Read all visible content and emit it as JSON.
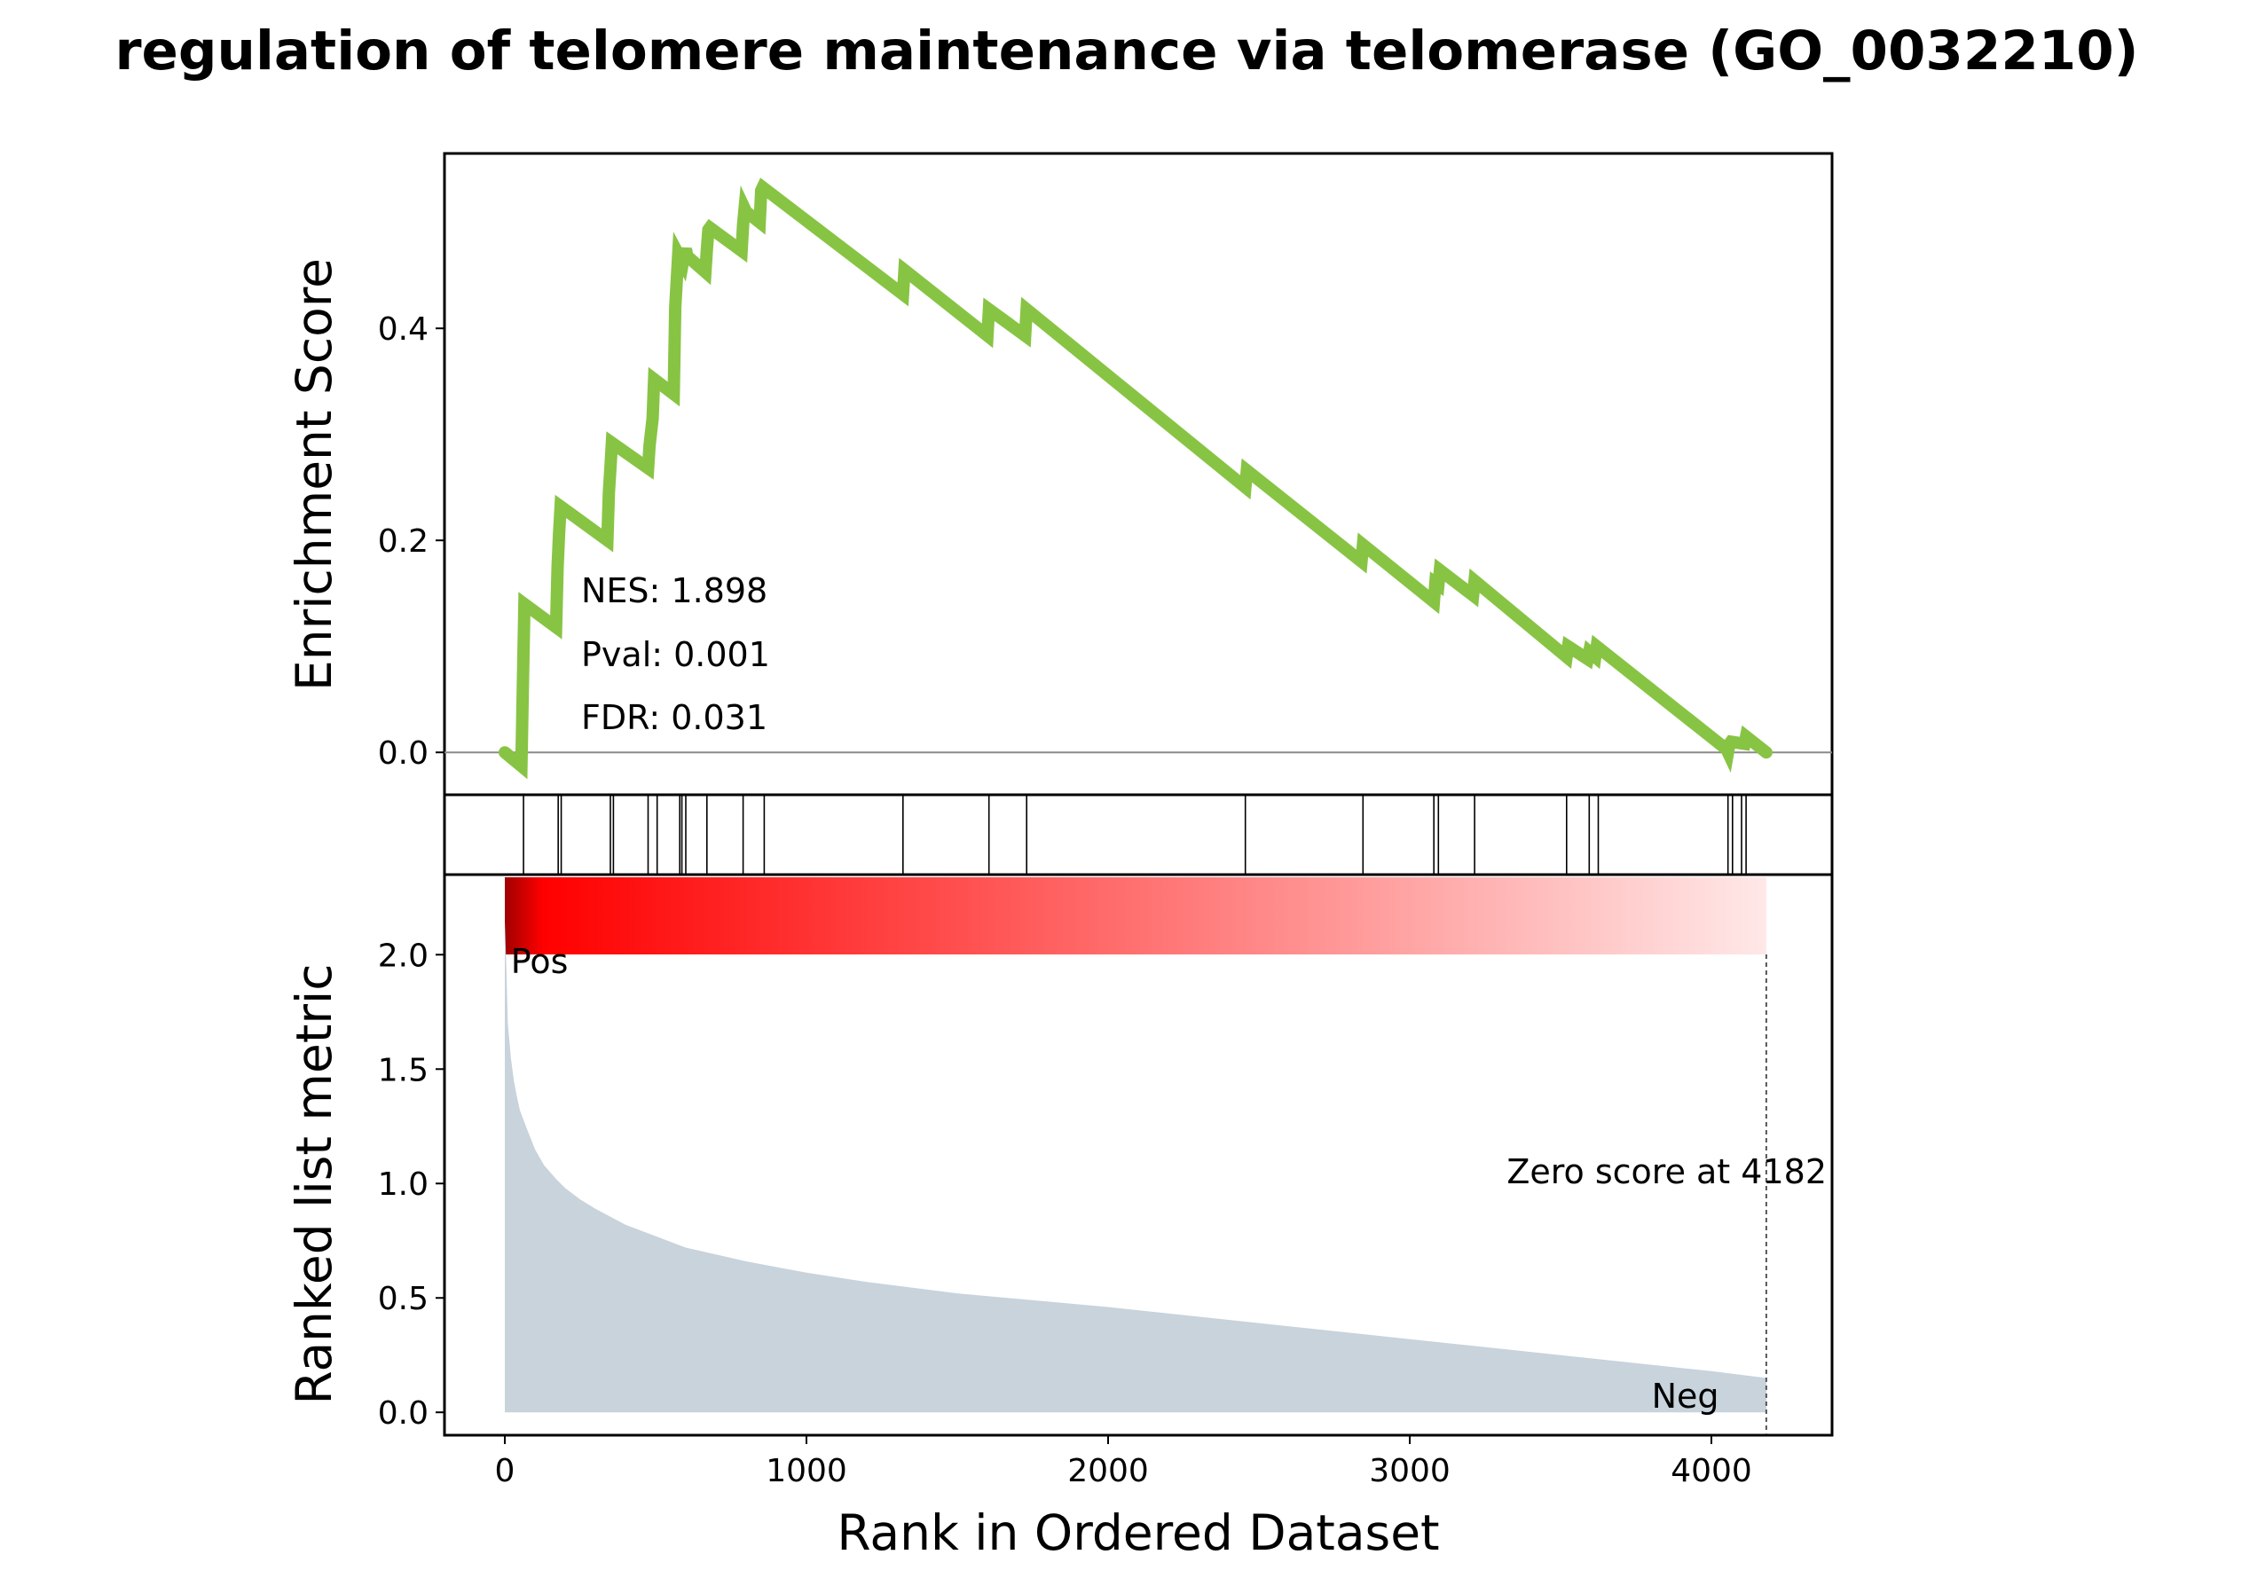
{
  "chart_data": {
    "type": "line",
    "title": "regulation of telomere maintenance via telomerase (GO_0032210)",
    "xlabel": "Rank in Ordered Dataset",
    "xlim": [
      -200,
      4400
    ],
    "xticks": [
      "0",
      "1000",
      "2000",
      "3000",
      "4000"
    ],
    "top_panel": {
      "ylabel": "Enrichment Score",
      "ylim": [
        -0.04,
        0.565
      ],
      "yticks": [
        "0.0",
        "0.2",
        "0.4"
      ],
      "line_color": "#88c444",
      "zero_line": true,
      "running_es": {
        "x": [
          0,
          55,
          60,
          65,
          170,
          175,
          180,
          185,
          340,
          345,
          350,
          355,
          475,
          480,
          490,
          495,
          560,
          565,
          570,
          575,
          590,
          595,
          600,
          605,
          665,
          670,
          675,
          680,
          785,
          790,
          795,
          800,
          845,
          850,
          855,
          1320,
          1325,
          1600,
          1605,
          1725,
          1730,
          2455,
          2460,
          2840,
          2845,
          3080,
          3085,
          3095,
          3100,
          3210,
          3215,
          3520,
          3525,
          3590,
          3595,
          3615,
          3620,
          4050,
          4055,
          4060,
          4065,
          4110,
          4115,
          4182
        ],
        "y": [
          0.0,
          -0.013,
          0.065,
          0.14,
          0.118,
          0.175,
          0.207,
          0.232,
          0.2,
          0.245,
          0.268,
          0.292,
          0.268,
          0.29,
          0.315,
          0.352,
          0.338,
          0.42,
          0.445,
          0.47,
          0.462,
          0.47,
          0.475,
          0.468,
          0.453,
          0.475,
          0.493,
          0.495,
          0.473,
          0.498,
          0.513,
          0.51,
          0.5,
          0.53,
          0.533,
          0.432,
          0.455,
          0.393,
          0.418,
          0.393,
          0.418,
          0.25,
          0.266,
          0.18,
          0.196,
          0.142,
          0.16,
          0.158,
          0.172,
          0.148,
          0.162,
          0.09,
          0.1,
          0.088,
          0.095,
          0.09,
          0.1,
          0.003,
          0.0,
          0.008,
          0.01,
          0.008,
          0.015,
          0.0
        ]
      },
      "annotations": {
        "nes": "NES: 1.898",
        "pval": "Pval: 0.001",
        "fdr": "FDR: 0.031"
      }
    },
    "hits_panel": {
      "hit_ranks": [
        62,
        177,
        187,
        350,
        360,
        475,
        505,
        580,
        587,
        600,
        670,
        790,
        860,
        1320,
        1605,
        1730,
        2455,
        2845,
        3080,
        3095,
        3215,
        3520,
        3595,
        3625,
        4055,
        4070,
        4100,
        4115
      ]
    },
    "gradient_bar": {
      "color_start": "#a00000",
      "color_peak": "#ff0000",
      "color_end": "#ffe8e8"
    },
    "bottom_panel": {
      "ylabel": "Ranked list metric",
      "ylim": [
        -0.1,
        2.35
      ],
      "yticks": [
        "0.0",
        "0.5",
        "1.0",
        "1.5",
        "2.0"
      ],
      "fill_color": "#c8d3dc",
      "metric_curve": {
        "x": [
          0,
          5,
          10,
          20,
          30,
          40,
          50,
          70,
          100,
          130,
          170,
          200,
          250,
          300,
          400,
          500,
          600,
          700,
          800,
          1000,
          1200,
          1500,
          2000,
          2500,
          3000,
          3500,
          4000,
          4182
        ],
        "y": [
          2.15,
          1.95,
          1.7,
          1.55,
          1.45,
          1.38,
          1.32,
          1.25,
          1.15,
          1.08,
          1.02,
          0.98,
          0.93,
          0.89,
          0.82,
          0.77,
          0.72,
          0.69,
          0.66,
          0.61,
          0.57,
          0.52,
          0.46,
          0.39,
          0.32,
          0.25,
          0.18,
          0.15
        ]
      },
      "pos_label": "Pos",
      "neg_label": "Neg",
      "pos_color": "#ff0000",
      "neg_color": "#0000ff",
      "zero_score_rank": 4182,
      "zero_score_label": "Zero score at 4182"
    }
  }
}
